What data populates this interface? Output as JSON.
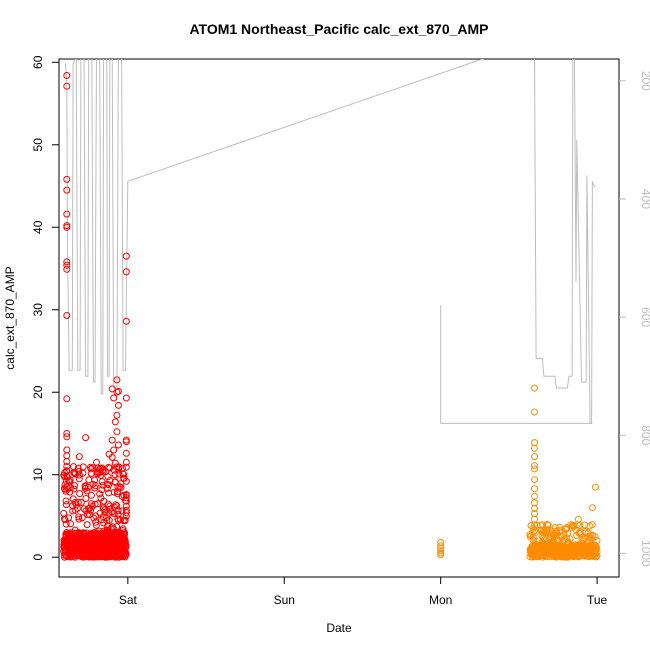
{
  "chart_data": {
    "type": "scatter",
    "title": "ATOM1 Northeast_Pacific calc_ext_870_AMP",
    "xlabel": "Date",
    "ylabel": "calc_ext_870_AMP",
    "x_ticks": [
      {
        "label": "Sat",
        "day": 0
      },
      {
        "label": "Sun",
        "day": 1
      },
      {
        "label": "Mon",
        "day": 2
      },
      {
        "label": "Tue",
        "day": 3
      }
    ],
    "xlim_days": [
      -0.44,
      3.14
    ],
    "ylim": [
      -2.4,
      60.4
    ],
    "y_ticks": [
      0,
      10,
      20,
      30,
      40,
      50,
      60
    ],
    "right_axis": {
      "ticks": [
        200,
        400,
        600,
        800,
        1000
      ],
      "range": [
        1040,
        163
      ],
      "color": "#bdbdbd"
    },
    "series": [
      {
        "color": "#ff0000",
        "tall_points": [
          {
            "x": -0.39,
            "y": 58.4
          },
          {
            "x": -0.39,
            "y": 57.1
          },
          {
            "x": -0.39,
            "y": 45.8
          },
          {
            "x": -0.39,
            "y": 44.5
          },
          {
            "x": -0.39,
            "y": 41.6
          },
          {
            "x": -0.39,
            "y": 40.2
          },
          {
            "x": -0.39,
            "y": 40.0
          },
          {
            "x": -0.39,
            "y": 35.8
          },
          {
            "x": -0.39,
            "y": 35.4
          },
          {
            "x": -0.39,
            "y": 34.9
          },
          {
            "x": -0.39,
            "y": 29.3
          },
          {
            "x": -0.39,
            "y": 19.2
          },
          {
            "x": -0.39,
            "y": 15.0
          },
          {
            "x": -0.39,
            "y": 14.6
          },
          {
            "x": -0.39,
            "y": 13.0
          },
          {
            "x": -0.39,
            "y": 12.3
          },
          {
            "x": -0.39,
            "y": 11.6
          },
          {
            "x": -0.39,
            "y": 11.0
          },
          {
            "x": -0.39,
            "y": 10.4
          },
          {
            "x": -0.39,
            "y": 9.8
          },
          {
            "x": -0.27,
            "y": 14.5
          },
          {
            "x": -0.31,
            "y": 12.2
          },
          {
            "x": -0.2,
            "y": 11.5
          },
          {
            "x": -0.24,
            "y": 10.9
          },
          {
            "x": -0.12,
            "y": 12.5
          },
          {
            "x": -0.1,
            "y": 20.4
          },
          {
            "x": -0.07,
            "y": 21.5
          },
          {
            "x": -0.09,
            "y": 19.3
          },
          {
            "x": -0.06,
            "y": 18.4
          },
          {
            "x": -0.07,
            "y": 17.2
          },
          {
            "x": -0.08,
            "y": 16.4
          },
          {
            "x": -0.07,
            "y": 15.2
          },
          {
            "x": -0.1,
            "y": 14.2
          },
          {
            "x": -0.06,
            "y": 13.6
          },
          {
            "x": -0.09,
            "y": 13.0
          },
          {
            "x": -0.1,
            "y": 12.1
          },
          {
            "x": -0.08,
            "y": 11.4
          },
          {
            "x": -0.06,
            "y": 20.1
          },
          {
            "x": -0.07,
            "y": 20.0
          },
          {
            "x": -0.01,
            "y": 36.5
          },
          {
            "x": -0.01,
            "y": 34.6
          },
          {
            "x": -0.01,
            "y": 28.6
          },
          {
            "x": -0.01,
            "y": 19.3
          },
          {
            "x": -0.01,
            "y": 14.2
          },
          {
            "x": -0.01,
            "y": 14.0
          },
          {
            "x": -0.01,
            "y": 12.6
          },
          {
            "x": -0.01,
            "y": 11.5
          },
          {
            "x": -0.01,
            "y": 10.9
          },
          {
            "x": -0.01,
            "y": 9.2
          },
          {
            "x": -0.01,
            "y": 7.6
          },
          {
            "x": -0.01,
            "y": 7.5
          },
          {
            "x": -0.01,
            "y": 7.2
          },
          {
            "x": -0.01,
            "y": 6.8
          },
          {
            "x": -0.01,
            "y": 6.2
          },
          {
            "x": -0.01,
            "y": 5.7
          },
          {
            "x": -0.01,
            "y": 5.4
          },
          {
            "x": -0.01,
            "y": 5.0
          }
        ],
        "cluster": {
          "x_range": [
            -0.41,
            -0.01
          ],
          "y_range": [
            0,
            11
          ],
          "dense_y_max": 3
        }
      },
      {
        "color": "#ff8c00",
        "tall_points": [
          {
            "x": 2.0,
            "y": 1.8
          },
          {
            "x": 2.0,
            "y": 1.4
          },
          {
            "x": 2.0,
            "y": 1.1
          },
          {
            "x": 2.0,
            "y": 0.8
          },
          {
            "x": 2.0,
            "y": 0.5
          },
          {
            "x": 2.0,
            "y": 0.3
          },
          {
            "x": 2.6,
            "y": 20.5
          },
          {
            "x": 2.6,
            "y": 17.6
          },
          {
            "x": 2.6,
            "y": 13.9
          },
          {
            "x": 2.6,
            "y": 13.2
          },
          {
            "x": 2.6,
            "y": 12.2
          },
          {
            "x": 2.6,
            "y": 11.1
          },
          {
            "x": 2.6,
            "y": 10.7
          },
          {
            "x": 2.6,
            "y": 9.4
          },
          {
            "x": 2.6,
            "y": 8.3
          },
          {
            "x": 2.6,
            "y": 7.4
          },
          {
            "x": 2.6,
            "y": 6.6
          },
          {
            "x": 2.6,
            "y": 5.9
          },
          {
            "x": 2.6,
            "y": 5.3
          },
          {
            "x": 2.6,
            "y": 4.6
          },
          {
            "x": 2.6,
            "y": 3.9
          },
          {
            "x": 2.6,
            "y": 3.2
          },
          {
            "x": 2.99,
            "y": 8.5
          },
          {
            "x": 2.97,
            "y": 6.0
          },
          {
            "x": 2.72,
            "y": 2.8
          },
          {
            "x": 2.85,
            "y": 3.7
          },
          {
            "x": 2.88,
            "y": 4.6
          }
        ],
        "cluster": {
          "x_range": [
            2.57,
            3.0
          ],
          "y_range": [
            0,
            4
          ],
          "dense_y_max": 1.5
        }
      }
    ],
    "line": {
      "color": "#bdbdbd",
      "points": [
        {
          "x": -0.4,
          "y": 170
        },
        {
          "x": -0.39,
          "y": 200
        },
        {
          "x": -0.385,
          "y": 500
        },
        {
          "x": -0.375,
          "y": 690
        },
        {
          "x": -0.355,
          "y": 690
        },
        {
          "x": -0.35,
          "y": 170
        },
        {
          "x": -0.33,
          "y": 160
        },
        {
          "x": -0.32,
          "y": 690
        },
        {
          "x": -0.305,
          "y": 690
        },
        {
          "x": -0.3,
          "y": 150
        },
        {
          "x": -0.28,
          "y": 150
        },
        {
          "x": -0.27,
          "y": 700
        },
        {
          "x": -0.255,
          "y": 700
        },
        {
          "x": -0.25,
          "y": 150
        },
        {
          "x": -0.23,
          "y": 150
        },
        {
          "x": -0.22,
          "y": 710
        },
        {
          "x": -0.21,
          "y": 710
        },
        {
          "x": -0.2,
          "y": 150
        },
        {
          "x": -0.18,
          "y": 150
        },
        {
          "x": -0.17,
          "y": 730
        },
        {
          "x": -0.16,
          "y": 730
        },
        {
          "x": -0.155,
          "y": 150
        },
        {
          "x": -0.135,
          "y": 150
        },
        {
          "x": -0.13,
          "y": 700
        },
        {
          "x": -0.12,
          "y": 700
        },
        {
          "x": -0.115,
          "y": 150
        },
        {
          "x": -0.1,
          "y": 150
        },
        {
          "x": -0.09,
          "y": 720
        },
        {
          "x": -0.07,
          "y": 720
        },
        {
          "x": -0.06,
          "y": 150
        },
        {
          "x": -0.04,
          "y": 150
        },
        {
          "x": -0.03,
          "y": 690
        },
        {
          "x": -0.015,
          "y": 690
        },
        {
          "x": 0.0,
          "y": 370
        },
        {
          "x": 0.0,
          "y": 370
        },
        {
          "x": 2.3,
          "y": 160
        },
        {
          "x": 2.5,
          "y": 150
        },
        {
          "x": 2.52,
          "y": 160
        },
        {
          "x": 2.6,
          "y": 150
        },
        {
          "x": 2.61,
          "y": 670
        },
        {
          "x": 2.65,
          "y": 670
        },
        {
          "x": 2.66,
          "y": 700
        },
        {
          "x": 2.73,
          "y": 700
        },
        {
          "x": 2.74,
          "y": 720
        },
        {
          "x": 2.81,
          "y": 720
        },
        {
          "x": 2.82,
          "y": 700
        },
        {
          "x": 2.84,
          "y": 700
        },
        {
          "x": 2.845,
          "y": 150
        },
        {
          "x": 2.855,
          "y": 150
        },
        {
          "x": 2.865,
          "y": 540
        },
        {
          "x": 2.87,
          "y": 300
        },
        {
          "x": 2.9,
          "y": 710
        },
        {
          "x": 2.93,
          "y": 710
        },
        {
          "x": 2.935,
          "y": 360
        },
        {
          "x": 2.955,
          "y": 780
        },
        {
          "x": 2.965,
          "y": 780
        },
        {
          "x": 2.97,
          "y": 370
        },
        {
          "x": 2.985,
          "y": 380
        }
      ],
      "segment2": [
        {
          "x": 2.0,
          "y": 580
        },
        {
          "x": 2.0,
          "y": 780
        },
        {
          "x": 2.97,
          "y": 780
        }
      ]
    }
  }
}
